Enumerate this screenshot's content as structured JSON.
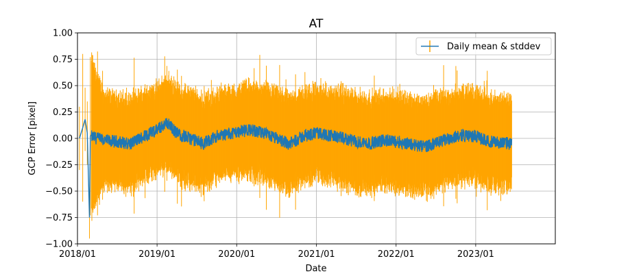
{
  "chart_data": {
    "type": "line",
    "title": "AT",
    "xlabel": "Date",
    "ylabel": "GCP Error [pixel]",
    "x_ticks": [
      "2018/01",
      "2019/01",
      "2020/01",
      "2021/01",
      "2022/01",
      "2023/01"
    ],
    "x_tick_dates": [
      "2018-01-01",
      "2019-01-01",
      "2020-01-01",
      "2021-01-01",
      "2022-01-01",
      "2023-01-01"
    ],
    "xlim": [
      "2018-01-01",
      "2024-01-01"
    ],
    "y_ticks": [
      "1.00",
      "0.75",
      "0.50",
      "0.25",
      "0.00",
      "−0.25",
      "−0.50",
      "−0.75",
      "−1.00"
    ],
    "y_tick_values": [
      1.0,
      0.75,
      0.5,
      0.25,
      0.0,
      -0.25,
      -0.5,
      -0.75,
      -1.0
    ],
    "ylim": [
      -1.0,
      1.0
    ],
    "grid": true,
    "legend_position": "top-right",
    "series": [
      {
        "name": "Daily mean & stddev",
        "color": "#1f77b4",
        "errorbar_color": "#ffa500",
        "data_start": "2018-01-10",
        "data_end": "2023-06-15",
        "points": [
          {
            "x": "2018-01-10",
            "y": 0.0,
            "err": 0.3
          },
          {
            "x": "2018-01-25",
            "y": 0.1,
            "err": 0.7
          },
          {
            "x": "2018-02-05",
            "y": 0.18,
            "err": 0.3
          },
          {
            "x": "2018-02-15",
            "y": 0.05,
            "err": 0.3
          },
          {
            "x": "2018-02-25",
            "y": -0.75,
            "err": 0.2
          },
          {
            "x": "2018-03-01",
            "y": 0.02,
            "err": 0.75
          },
          {
            "x": "2018-05-01",
            "y": -0.02,
            "err": 0.42
          },
          {
            "x": "2018-07-01",
            "y": -0.03,
            "err": 0.4
          },
          {
            "x": "2018-09-01",
            "y": -0.05,
            "err": 0.4
          },
          {
            "x": "2018-11-01",
            "y": 0.02,
            "err": 0.4
          },
          {
            "x": "2019-01-01",
            "y": 0.08,
            "err": 0.38
          },
          {
            "x": "2019-02-15",
            "y": 0.15,
            "err": 0.4
          },
          {
            "x": "2019-04-01",
            "y": 0.05,
            "err": 0.4
          },
          {
            "x": "2019-06-01",
            "y": 0.0,
            "err": 0.42
          },
          {
            "x": "2019-08-01",
            "y": -0.05,
            "err": 0.4
          },
          {
            "x": "2019-10-01",
            "y": 0.02,
            "err": 0.38
          },
          {
            "x": "2020-01-01",
            "y": 0.06,
            "err": 0.38
          },
          {
            "x": "2020-03-01",
            "y": 0.08,
            "err": 0.4
          },
          {
            "x": "2020-05-01",
            "y": 0.05,
            "err": 0.4
          },
          {
            "x": "2020-07-01",
            "y": 0.0,
            "err": 0.42
          },
          {
            "x": "2020-09-01",
            "y": -0.05,
            "err": 0.42
          },
          {
            "x": "2020-11-01",
            "y": 0.02,
            "err": 0.4
          },
          {
            "x": "2021-01-01",
            "y": 0.05,
            "err": 0.4
          },
          {
            "x": "2021-03-01",
            "y": 0.03,
            "err": 0.4
          },
          {
            "x": "2021-05-01",
            "y": 0.0,
            "err": 0.42
          },
          {
            "x": "2021-07-01",
            "y": -0.03,
            "err": 0.42
          },
          {
            "x": "2021-09-01",
            "y": -0.05,
            "err": 0.42
          },
          {
            "x": "2021-11-01",
            "y": -0.02,
            "err": 0.4
          },
          {
            "x": "2022-01-01",
            "y": -0.03,
            "err": 0.42
          },
          {
            "x": "2022-03-01",
            "y": -0.05,
            "err": 0.42
          },
          {
            "x": "2022-05-01",
            "y": -0.08,
            "err": 0.42
          },
          {
            "x": "2022-07-01",
            "y": -0.05,
            "err": 0.42
          },
          {
            "x": "2022-09-01",
            "y": 0.0,
            "err": 0.4
          },
          {
            "x": "2022-11-01",
            "y": 0.03,
            "err": 0.4
          },
          {
            "x": "2023-01-01",
            "y": 0.02,
            "err": 0.4
          },
          {
            "x": "2023-03-01",
            "y": -0.03,
            "err": 0.4
          },
          {
            "x": "2023-06-15",
            "y": -0.05,
            "err": 0.4
          }
        ]
      }
    ]
  }
}
